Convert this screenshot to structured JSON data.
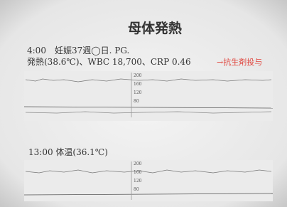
{
  "slide": {
    "title": "母体発熱",
    "line_1": "4:00　妊娠37週◯日. PG.",
    "line_2": "発熱(38.6℃)、WBC 18,700、CRP 0.46",
    "annotation": "→抗生剤投与",
    "line_3": "13:00 体温(36.1℃)",
    "trace_1_scale": [
      200,
      160,
      120,
      80
    ],
    "trace_2_scale": [
      200,
      160,
      120,
      80
    ]
  }
}
